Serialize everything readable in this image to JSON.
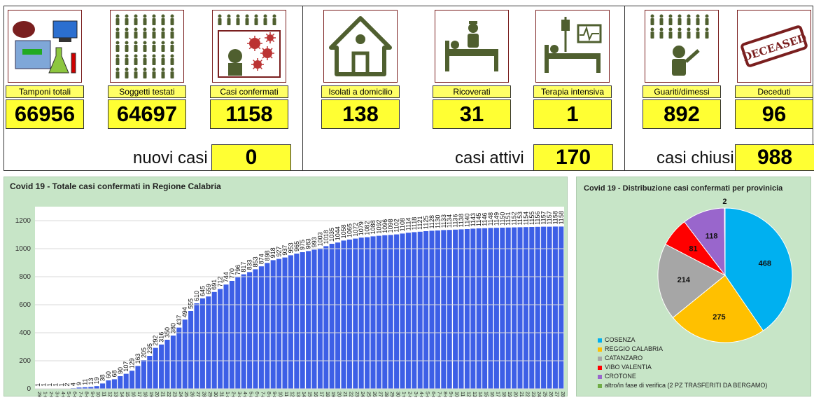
{
  "tiles": [
    {
      "label": "Tamponi totali",
      "value": "66956",
      "icon": "lab-icon"
    },
    {
      "label": "Soggetti testati",
      "value": "64697",
      "icon": "people-icon"
    },
    {
      "label": "Casi confermati",
      "value": "1158",
      "icon": "virus-icon"
    },
    {
      "label": "Isolati a domicilio",
      "value": "138",
      "icon": "house-icon"
    },
    {
      "label": "Ricoverati",
      "value": "31",
      "icon": "hospital-bed-icon"
    },
    {
      "label": "Terapia intensiva",
      "value": "1",
      "icon": "intensive-care-icon"
    },
    {
      "label": "Guariti/dimessi",
      "value": "892",
      "icon": "recovered-icon"
    },
    {
      "label": "Deceduti",
      "value": "96",
      "icon": "deceased-stamp-icon"
    }
  ],
  "stamp_text": "DECEASED",
  "summary": {
    "nuovi_label": "nuovi casi",
    "nuovi_value": "0",
    "attivi_label": "casi attivi",
    "attivi_value": "170",
    "chiusi_label": "casi chiusi",
    "chiusi_value": "988"
  },
  "colors": {
    "yellow": "#ffff33",
    "panel": "#c7e5c7",
    "bar": "#3d5fe6",
    "olive": "#4f5f2f"
  },
  "chart_data": [
    {
      "type": "bar",
      "title": "Covid 19 - Totale casi confermati in Regione Calabria",
      "xlabel": "",
      "ylabel": "",
      "ylim": [
        0,
        1300
      ],
      "yticks": [
        0,
        200,
        400,
        600,
        800,
        1000,
        1200
      ],
      "categories": [
        "29-feb",
        "1-mar",
        "2-mar",
        "3-mar",
        "4-mar",
        "5-mar",
        "6-mar",
        "7-mar",
        "8-mar",
        "9-mar",
        "10-mar",
        "11-mar",
        "12-mar",
        "13-mar",
        "14-mar",
        "15-mar",
        "16-mar",
        "17-mar",
        "18-mar",
        "19-mar",
        "20-mar",
        "21-mar",
        "22-mar",
        "23-mar",
        "24-mar",
        "25-mar",
        "26-mar",
        "27-mar",
        "28-mar",
        "29-mar",
        "30-mar",
        "31-mar",
        "1-apr",
        "2-apr",
        "3-apr",
        "4-apr",
        "5-apr",
        "6-apr",
        "7-apr",
        "8-apr",
        "9-apr",
        "10-apr",
        "11-apr",
        "12-apr",
        "13-apr",
        "14-apr",
        "15-apr",
        "16-apr",
        "17-apr",
        "18-apr",
        "19-apr",
        "20-apr",
        "21-apr",
        "22-apr",
        "23-apr",
        "24-apr",
        "25-apr",
        "26-apr",
        "27-apr",
        "28-apr",
        "29-apr",
        "30-apr",
        "1-mag",
        "2-mag",
        "3-mag",
        "4-mag",
        "5-mag",
        "6-mag",
        "7-mag",
        "8-mag",
        "9-mag",
        "10-mag",
        "11-mag",
        "12-mag",
        "13-mag",
        "14-mag",
        "15-mag",
        "16-mag",
        "17-mag",
        "18-mag",
        "19-mag",
        "20-mag",
        "21-mag",
        "22-mag",
        "23-mag",
        "24-mag",
        "25-mag",
        "26-mag",
        "27-mag",
        "28-mag"
      ],
      "values": [
        1,
        1,
        1,
        1,
        1,
        2,
        4,
        9,
        11,
        13,
        19,
        38,
        60,
        68,
        90,
        107,
        129,
        163,
        205,
        235,
        292,
        316,
        350,
        380,
        437,
        494,
        555,
        610,
        645,
        659,
        691,
        712,
        744,
        770,
        796,
        817,
        833,
        853,
        874,
        898,
        918,
        927,
        937,
        953,
        965,
        975,
        983,
        993,
        1003,
        1018,
        1035,
        1044,
        1058,
        1065,
        1072,
        1079,
        1082,
        1088,
        1092,
        1096,
        1098,
        1102,
        1108,
        1114,
        1118,
        1121,
        1125,
        1128,
        1130,
        1133,
        1134,
        1136,
        1138,
        1140,
        1143,
        1145,
        1146,
        1148,
        1149,
        1150,
        1151,
        1152,
        1153,
        1154,
        1155,
        1156,
        1157,
        1157,
        1158,
        1158
      ],
      "label_rotation": "vertical"
    },
    {
      "type": "pie",
      "title": "Covid 19 - Distribuzione casi confermati per provinicia",
      "slices": [
        {
          "label": "COSENZA",
          "value": 468,
          "color": "#00b0f0"
        },
        {
          "label": "REGGIO CALABRIA",
          "value": 275,
          "color": "#ffc000"
        },
        {
          "label": "CATANZARO",
          "value": 214,
          "color": "#a6a6a6"
        },
        {
          "label": "VIBO VALENTIA",
          "value": 81,
          "color": "#ff0000"
        },
        {
          "label": "CROTONE",
          "value": 118,
          "color": "#9966cc"
        },
        {
          "label": "altro/in fase di verifica (2 PZ TRASFERITI DA BERGAMO)",
          "value": 2,
          "color": "#70ad47"
        }
      ],
      "legend_position": "bottom-left"
    }
  ]
}
